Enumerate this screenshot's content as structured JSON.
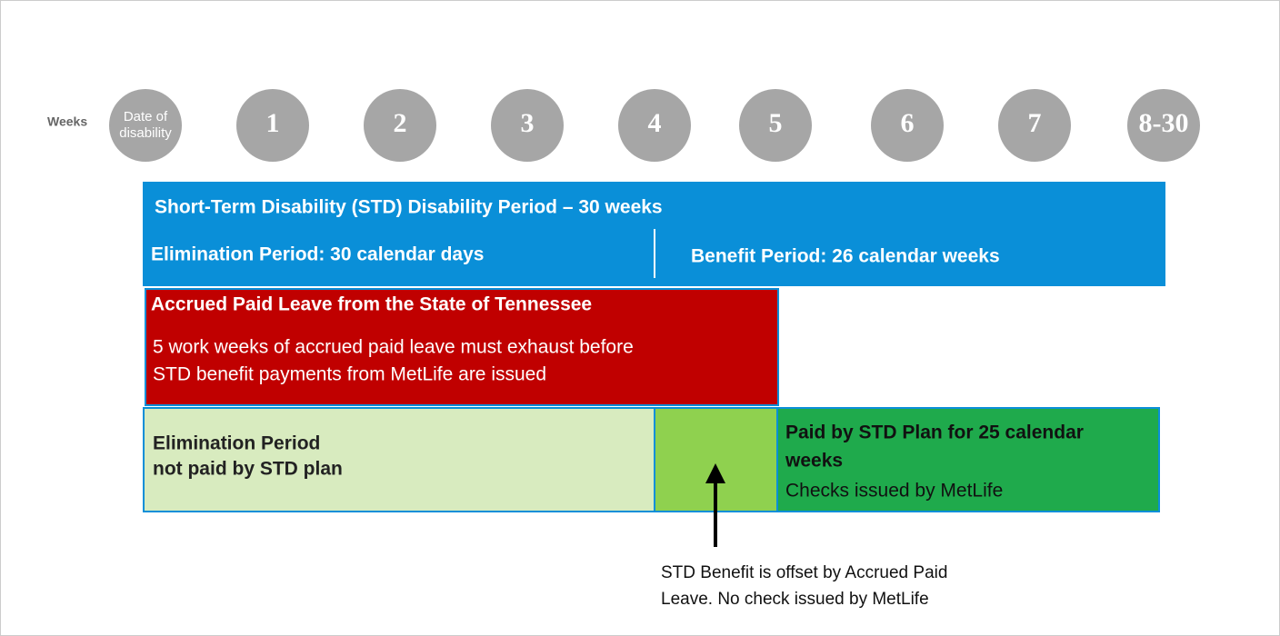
{
  "timeline": {
    "label": "Weeks",
    "weeks": [
      [
        "Date of",
        "disability"
      ],
      [
        "1"
      ],
      [
        "2"
      ],
      [
        "3"
      ],
      [
        "4"
      ],
      [
        "5"
      ],
      [
        "6"
      ],
      [
        "7"
      ],
      [
        "8-30"
      ]
    ]
  },
  "std_period": {
    "title": "Short-Term Disability (STD) Disability Period – 30 weeks",
    "elimination": "Elimination Period: 30 calendar days",
    "benefit": "Benefit Period: 26 calendar weeks"
  },
  "accrued_leave": {
    "title": "Accrued Paid Leave from the State of Tennessee",
    "lines": [
      "5 work weeks of accrued paid leave must exhaust before",
      "STD benefit payments from MetLife are issued"
    ]
  },
  "elimination_box": {
    "lines": [
      "Elimination Period",
      "not paid by STD plan"
    ]
  },
  "paid_box": {
    "lines": [
      "Paid by STD Plan for 25 calendar",
      "weeks"
    ],
    "note": "Checks issued by MetLife"
  },
  "offset_note": {
    "lines": [
      "STD Benefit is offset by Accrued Paid",
      "Leave. No check issued by MetLife"
    ]
  }
}
